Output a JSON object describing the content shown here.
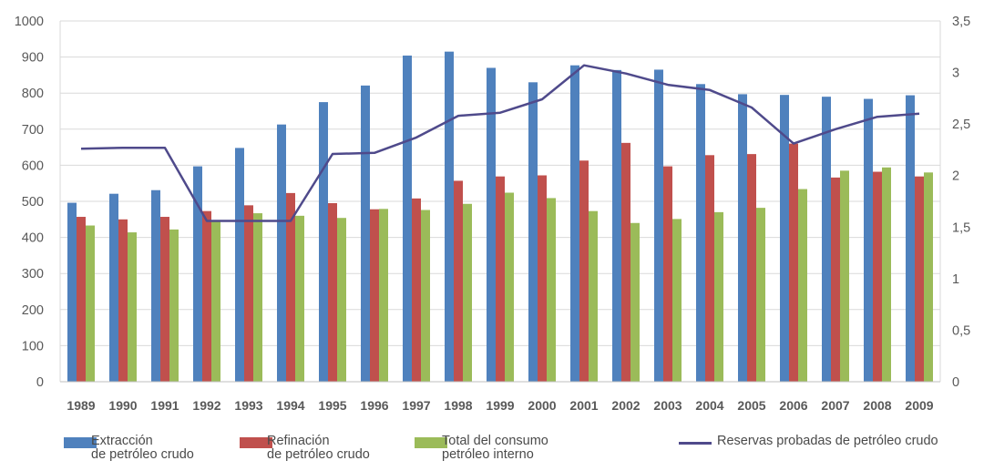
{
  "chart_data": {
    "type": "bar",
    "categories": [
      "1989",
      "1990",
      "1991",
      "1992",
      "1993",
      "1994",
      "1995",
      "1996",
      "1997",
      "1998",
      "1999",
      "2000",
      "2001",
      "2002",
      "2003",
      "2004",
      "2005",
      "2006",
      "2007",
      "2008",
      "2009"
    ],
    "series": [
      {
        "name": "Extracción de petróleo crudo",
        "name_lines": [
          "Extracción",
          "de petróleo crudo"
        ],
        "color": "#4f81bd",
        "kind": "bar",
        "axis": "left",
        "values": [
          496,
          521,
          531,
          597,
          648,
          713,
          775,
          821,
          904,
          915,
          870,
          830,
          877,
          864,
          865,
          825,
          797,
          795,
          790,
          784,
          794
        ]
      },
      {
        "name": "Refinación de petróleo crudo",
        "name_lines": [
          "Refinación",
          "de petróleo crudo"
        ],
        "color": "#c0504d",
        "kind": "bar",
        "axis": "left",
        "values": [
          457,
          450,
          457,
          473,
          489,
          523,
          495,
          478,
          508,
          557,
          569,
          572,
          613,
          662,
          597,
          628,
          631,
          660,
          566,
          582,
          569
        ]
      },
      {
        "name": "Total del consumo petróleo interno",
        "name_lines": [
          "Total del consumo",
          "petróleo interno"
        ],
        "color": "#9bbb59",
        "kind": "bar",
        "axis": "left",
        "values": [
          433,
          414,
          422,
          445,
          467,
          460,
          454,
          479,
          476,
          493,
          524,
          509,
          473,
          440,
          451,
          470,
          482,
          534,
          585,
          594,
          580
        ]
      },
      {
        "name": "Reservas probadas de petróleo crudo",
        "name_lines": [
          "Reservas probadas de petróleo crudo"
        ],
        "color": "#4f4a8b",
        "kind": "line",
        "axis": "right",
        "values": [
          2.26,
          2.27,
          2.27,
          1.56,
          1.56,
          1.56,
          2.21,
          2.22,
          2.37,
          2.58,
          2.61,
          2.74,
          3.07,
          2.99,
          2.88,
          2.83,
          2.66,
          2.31,
          2.45,
          2.57,
          2.6
        ]
      }
    ],
    "ylim_left": [
      0,
      1000
    ],
    "yticks_left": [
      "0",
      "100",
      "200",
      "300",
      "400",
      "500",
      "600",
      "700",
      "800",
      "900",
      "1000"
    ],
    "ylim_right": [
      0,
      3.5
    ],
    "yticks_right": [
      "0",
      "0,5",
      "1",
      "1,5",
      "2",
      "2,5",
      "3",
      "3,5"
    ],
    "grid": true,
    "legend_position": "bottom"
  }
}
